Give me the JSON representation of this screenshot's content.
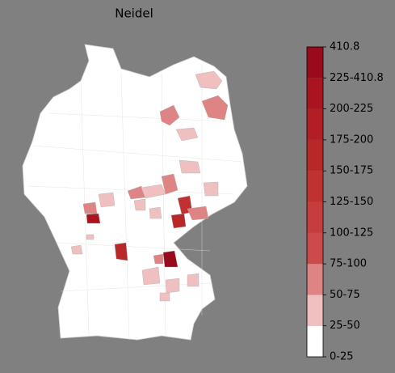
{
  "title": "Neidel",
  "colorbar": {
    "labels": [
      "0-25",
      "25-50",
      "50-75",
      "75-100",
      "100-125",
      "125-150",
      "150-175",
      "175-200",
      "200-225",
      "225-410.8",
      "410.8"
    ],
    "colors": [
      "#ffffff",
      "#f0c0c0",
      "#de8484",
      "#cd4a4a",
      "#c63d3d",
      "#c03232",
      "#b92828",
      "#b21e24",
      "#aa1420",
      "#9a0a1c"
    ]
  }
}
